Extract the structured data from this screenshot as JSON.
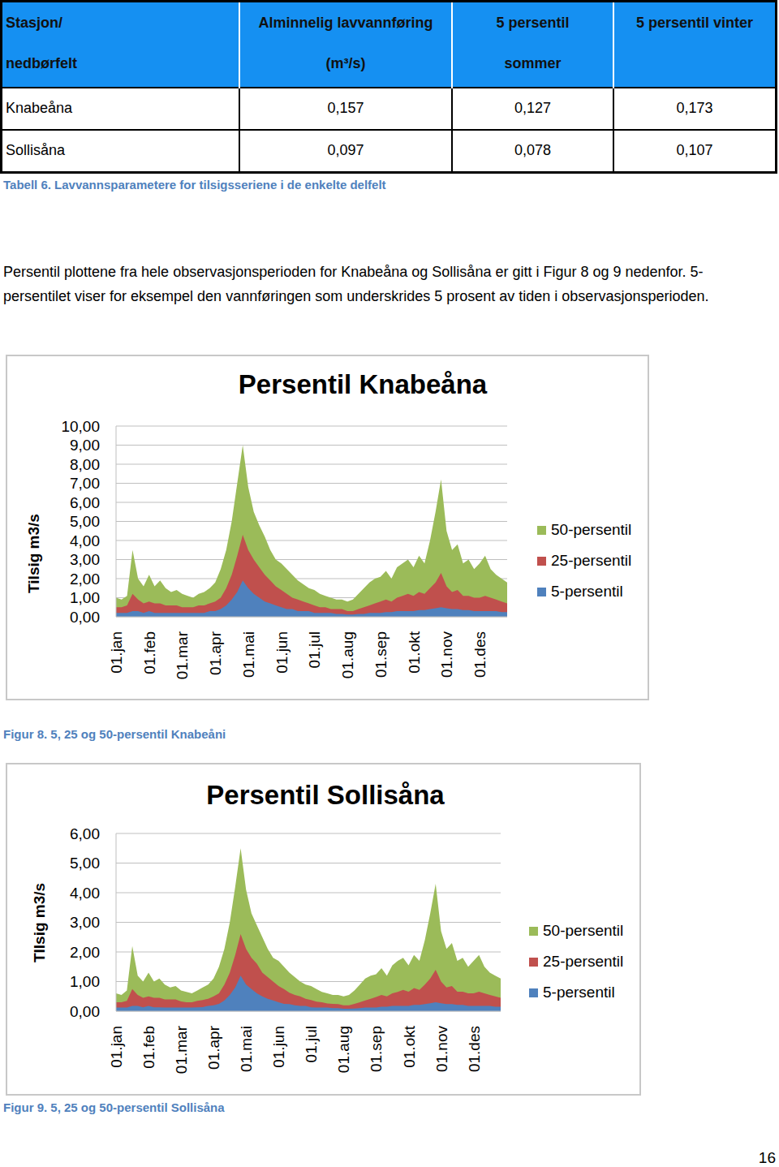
{
  "table": {
    "header": [
      [
        "Stasjon/",
        "nedbørfelt"
      ],
      [
        "Alminnelig lavvannføring",
        "(m³/s)"
      ],
      [
        "5 persentil",
        "sommer"
      ],
      [
        "5 persentil vinter"
      ]
    ],
    "rows": [
      [
        "Knabeåna",
        "0,157",
        "0,127",
        "0,173"
      ],
      [
        "Sollisåna",
        "0,097",
        "0,078",
        "0,107"
      ]
    ]
  },
  "table_caption": "Tabell 6. Lavvannsparametere for tilsigsseriene i de enkelte delfelt",
  "paragraph": "Persentil plottene fra hele observasjonsperioden for Knabeåna og Sollisåna er gitt i Figur 8 og 9 nedenfor. 5-persentilet viser for eksempel den vannføringen som underskrides 5 prosent av tiden i observasjonsperioden.",
  "chart_data": [
    {
      "type": "area",
      "title": "Persentil Knabeåna",
      "y_label": "Tilsig m3/s",
      "categories": [
        "01.jan",
        null,
        null,
        null,
        null,
        null,
        "01.feb",
        null,
        null,
        null,
        null,
        null,
        "01.mar",
        null,
        null,
        null,
        null,
        null,
        "01.apr",
        null,
        null,
        null,
        null,
        null,
        "01.mai",
        null,
        null,
        null,
        null,
        null,
        "01.jun",
        null,
        null,
        null,
        null,
        null,
        "01.jul",
        null,
        null,
        null,
        null,
        null,
        "01.aug",
        null,
        null,
        null,
        null,
        null,
        "01.sep",
        null,
        null,
        null,
        null,
        null,
        "01.okt",
        null,
        null,
        null,
        null,
        null,
        "01.nov",
        null,
        null,
        null,
        null,
        null,
        "01.des",
        null,
        null,
        null,
        null,
        null
      ],
      "series": [
        {
          "name": "50-persentil",
          "color": "#9bbb59",
          "values": [
            1.0,
            0.9,
            1.1,
            3.5,
            2.0,
            1.6,
            2.2,
            1.6,
            1.9,
            1.5,
            1.3,
            1.4,
            1.2,
            1.1,
            1.0,
            1.2,
            1.3,
            1.5,
            1.8,
            2.5,
            3.5,
            5.0,
            7.0,
            9.0,
            6.8,
            5.5,
            4.8,
            4.2,
            3.5,
            3.0,
            2.8,
            2.5,
            2.2,
            1.9,
            1.7,
            1.5,
            1.4,
            1.2,
            1.1,
            1.0,
            0.9,
            0.9,
            0.8,
            0.9,
            1.2,
            1.5,
            1.8,
            2.0,
            2.1,
            2.4,
            2.0,
            2.6,
            2.8,
            3.0,
            2.6,
            3.2,
            2.8,
            4.0,
            5.5,
            7.2,
            4.5,
            3.5,
            3.8,
            2.8,
            3.0,
            2.5,
            2.8,
            3.2,
            2.5,
            2.2,
            2.0,
            1.8
          ]
        },
        {
          "name": "25-persentil",
          "color": "#c0504d",
          "values": [
            0.5,
            0.5,
            0.6,
            1.2,
            0.9,
            0.7,
            0.8,
            0.7,
            0.7,
            0.6,
            0.6,
            0.6,
            0.5,
            0.5,
            0.5,
            0.6,
            0.6,
            0.7,
            0.8,
            1.0,
            1.5,
            2.2,
            3.2,
            4.3,
            3.5,
            3.0,
            2.6,
            2.2,
            1.9,
            1.6,
            1.4,
            1.2,
            1.0,
            0.9,
            0.8,
            0.7,
            0.6,
            0.5,
            0.5,
            0.4,
            0.4,
            0.4,
            0.3,
            0.3,
            0.4,
            0.5,
            0.6,
            0.7,
            0.8,
            0.9,
            0.8,
            1.0,
            1.1,
            1.2,
            1.1,
            1.3,
            1.2,
            1.5,
            1.8,
            2.3,
            1.6,
            1.3,
            1.4,
            1.1,
            1.1,
            1.0,
            1.0,
            1.1,
            1.0,
            0.9,
            0.8,
            0.7
          ]
        },
        {
          "name": "5-persentil",
          "color": "#4f81bd",
          "values": [
            0.2,
            0.2,
            0.2,
            0.3,
            0.3,
            0.2,
            0.3,
            0.2,
            0.2,
            0.2,
            0.2,
            0.2,
            0.2,
            0.2,
            0.2,
            0.2,
            0.2,
            0.3,
            0.3,
            0.4,
            0.6,
            0.9,
            1.3,
            1.9,
            1.5,
            1.2,
            1.0,
            0.8,
            0.7,
            0.6,
            0.5,
            0.4,
            0.4,
            0.3,
            0.3,
            0.3,
            0.2,
            0.2,
            0.2,
            0.2,
            0.15,
            0.15,
            0.12,
            0.12,
            0.15,
            0.15,
            0.2,
            0.2,
            0.2,
            0.25,
            0.25,
            0.3,
            0.3,
            0.3,
            0.3,
            0.35,
            0.35,
            0.4,
            0.45,
            0.5,
            0.45,
            0.4,
            0.4,
            0.35,
            0.35,
            0.3,
            0.3,
            0.3,
            0.3,
            0.3,
            0.25,
            0.25
          ]
        }
      ],
      "ylim": [
        0,
        10
      ],
      "yticks": [
        {
          "value": 0,
          "label": "0,00"
        },
        {
          "value": 1,
          "label": "1,00"
        },
        {
          "value": 2,
          "label": "2,00"
        },
        {
          "value": 3,
          "label": "3,00"
        },
        {
          "value": 4,
          "label": "4,00"
        },
        {
          "value": 5,
          "label": "5,00"
        },
        {
          "value": 6,
          "label": "6,00"
        },
        {
          "value": 7,
          "label": "7,00"
        },
        {
          "value": 8,
          "label": "8,00"
        },
        {
          "value": 9,
          "label": "9,00"
        },
        {
          "value": 10,
          "label": "10,00"
        }
      ],
      "grid": true,
      "legend": "right",
      "stacked": false
    },
    {
      "type": "area",
      "title": "Persentil Sollisåna",
      "y_label": "TIlsig m3/s",
      "categories": [
        "01.jan",
        null,
        null,
        null,
        null,
        null,
        "01.feb",
        null,
        null,
        null,
        null,
        null,
        "01.mar",
        null,
        null,
        null,
        null,
        null,
        "01.apr",
        null,
        null,
        null,
        null,
        null,
        "01.mai",
        null,
        null,
        null,
        null,
        null,
        "01.jun",
        null,
        null,
        null,
        null,
        null,
        "01.jul",
        null,
        null,
        null,
        null,
        null,
        "01.aug",
        null,
        null,
        null,
        null,
        null,
        "01.sep",
        null,
        null,
        null,
        null,
        null,
        "01.okt",
        null,
        null,
        null,
        null,
        null,
        "01.nov",
        null,
        null,
        null,
        null,
        null,
        "01.des",
        null,
        null,
        null,
        null,
        null
      ],
      "series": [
        {
          "name": "50-persentil",
          "color": "#9bbb59",
          "values": [
            0.6,
            0.55,
            0.7,
            2.2,
            1.2,
            1.0,
            1.3,
            1.0,
            1.1,
            0.9,
            0.8,
            0.85,
            0.7,
            0.65,
            0.6,
            0.7,
            0.8,
            0.9,
            1.1,
            1.5,
            2.1,
            3.0,
            4.2,
            5.5,
            4.1,
            3.3,
            2.9,
            2.5,
            2.1,
            1.8,
            1.7,
            1.5,
            1.3,
            1.15,
            1.0,
            0.9,
            0.85,
            0.75,
            0.65,
            0.6,
            0.55,
            0.55,
            0.5,
            0.55,
            0.7,
            0.9,
            1.1,
            1.2,
            1.25,
            1.45,
            1.2,
            1.55,
            1.7,
            1.8,
            1.55,
            1.9,
            1.7,
            2.4,
            3.3,
            4.3,
            2.7,
            2.1,
            2.3,
            1.7,
            1.8,
            1.5,
            1.7,
            1.9,
            1.5,
            1.3,
            1.2,
            1.1
          ]
        },
        {
          "name": "25-persentil",
          "color": "#c0504d",
          "values": [
            0.3,
            0.3,
            0.35,
            0.75,
            0.55,
            0.45,
            0.5,
            0.45,
            0.45,
            0.4,
            0.4,
            0.4,
            0.33,
            0.3,
            0.3,
            0.35,
            0.38,
            0.42,
            0.5,
            0.6,
            0.9,
            1.3,
            1.9,
            2.6,
            2.1,
            1.8,
            1.6,
            1.3,
            1.15,
            1.0,
            0.85,
            0.75,
            0.62,
            0.55,
            0.5,
            0.42,
            0.38,
            0.32,
            0.3,
            0.26,
            0.25,
            0.24,
            0.2,
            0.2,
            0.25,
            0.3,
            0.36,
            0.42,
            0.48,
            0.55,
            0.5,
            0.6,
            0.65,
            0.72,
            0.66,
            0.78,
            0.72,
            0.9,
            1.1,
            1.4,
            1.0,
            0.8,
            0.85,
            0.66,
            0.66,
            0.6,
            0.6,
            0.66,
            0.6,
            0.55,
            0.5,
            0.45
          ]
        },
        {
          "name": "5-persentil",
          "color": "#4f81bd",
          "values": [
            0.12,
            0.12,
            0.12,
            0.18,
            0.18,
            0.13,
            0.18,
            0.13,
            0.13,
            0.12,
            0.12,
            0.12,
            0.12,
            0.12,
            0.12,
            0.13,
            0.14,
            0.18,
            0.2,
            0.25,
            0.36,
            0.55,
            0.8,
            1.2,
            0.9,
            0.75,
            0.6,
            0.5,
            0.42,
            0.36,
            0.3,
            0.25,
            0.24,
            0.2,
            0.18,
            0.18,
            0.13,
            0.12,
            0.12,
            0.12,
            0.1,
            0.1,
            0.08,
            0.08,
            0.09,
            0.1,
            0.12,
            0.12,
            0.12,
            0.15,
            0.15,
            0.18,
            0.18,
            0.18,
            0.18,
            0.21,
            0.21,
            0.24,
            0.27,
            0.3,
            0.27,
            0.24,
            0.24,
            0.21,
            0.21,
            0.18,
            0.18,
            0.18,
            0.18,
            0.18,
            0.15,
            0.15
          ]
        }
      ],
      "ylim": [
        0,
        6
      ],
      "yticks": [
        {
          "value": 0,
          "label": "0,00"
        },
        {
          "value": 1,
          "label": "1,00"
        },
        {
          "value": 2,
          "label": "2,00"
        },
        {
          "value": 3,
          "label": "3,00"
        },
        {
          "value": 4,
          "label": "4,00"
        },
        {
          "value": 5,
          "label": "5,00"
        },
        {
          "value": 6,
          "label": "6,00"
        }
      ],
      "grid": true,
      "legend": "right",
      "stacked": false
    }
  ],
  "figure_captions": [
    "Figur 8. 5, 25 og 50-persentil Knabeåni",
    "Figur 9. 5, 25 og 50-persentil Sollisåna"
  ],
  "page_number": "16"
}
